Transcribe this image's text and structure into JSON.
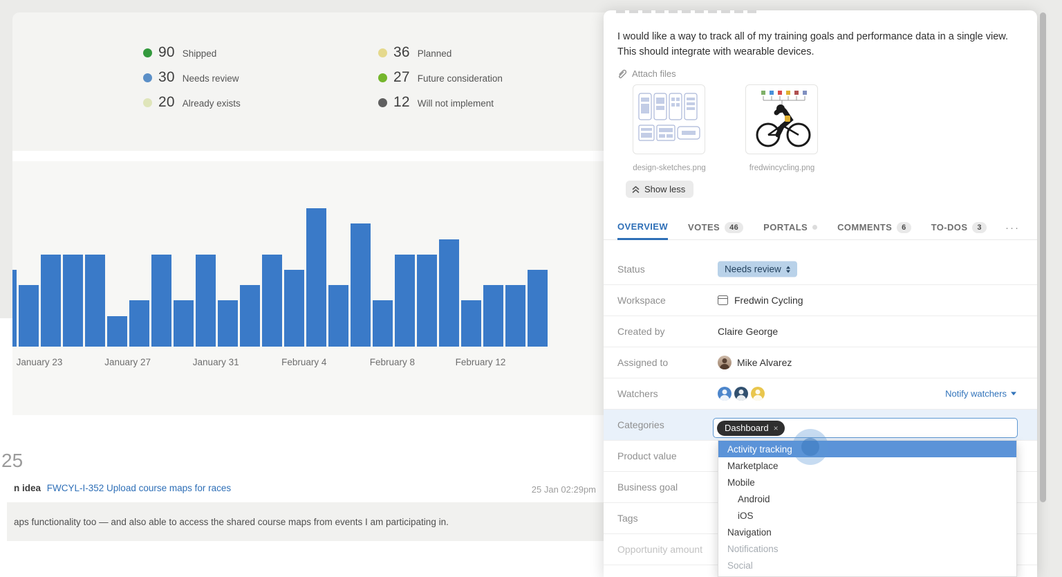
{
  "colors": {
    "accent_blue": "#2e6fb7",
    "bar_blue": "#3a7ac8",
    "status_badge_bg": "#b9d2e9",
    "dropdown_highlight": "#5b93d8"
  },
  "legend": {
    "items": [
      {
        "value": "90",
        "label": "Shipped",
        "color": "#33993d"
      },
      {
        "value": "30",
        "label": "Needs review",
        "color": "#5b8fc7"
      },
      {
        "value": "20",
        "label": "Already exists",
        "color": "#dfe5ba"
      },
      {
        "value": "36",
        "label": "Planned",
        "color": "#e5d98d"
      },
      {
        "value": "27",
        "label": "Future consideration",
        "color": "#74b62c"
      },
      {
        "value": "12",
        "label": "Will not implement",
        "color": "#5f5f5f"
      }
    ]
  },
  "chart_data": {
    "type": "bar",
    "title": "",
    "xlabel": "",
    "ylabel": "",
    "x": [
      1,
      2,
      3,
      4,
      5,
      6,
      7,
      8,
      9,
      10,
      11,
      12,
      13,
      14,
      15,
      16,
      17,
      18,
      19,
      20,
      21,
      22,
      23,
      24,
      25
    ],
    "values": [
      5,
      4,
      6,
      6,
      6,
      2,
      3,
      6,
      3,
      6,
      3,
      4,
      6,
      5,
      9,
      4,
      8,
      3,
      6,
      6,
      7,
      3,
      4,
      4,
      5
    ],
    "x_tick_labels": [
      "January 23",
      "January 27",
      "January 31",
      "February 4",
      "February 8",
      "February 12"
    ],
    "bar_color": "#3a7ac8",
    "grid": false,
    "legend_position": "none",
    "note": "daily bars, one per day; y-axis unlabeled, values estimated from bar heights"
  },
  "feed": {
    "count": "25",
    "prefix": "n idea",
    "link": "FWCYL-I-352 Upload course maps for races",
    "timestamp": "25 Jan 02:29pm",
    "quote": "aps functionality too — and also able to access the shared course maps from events I am participating in."
  },
  "panel": {
    "description": "I would like a way to track all of my training goals and performance data in a single view. This should integrate with wearable devices.",
    "attach_files_label": "Attach files",
    "attachments": [
      {
        "name": "design-sketches.png",
        "kind": "wireframes"
      },
      {
        "name": "fredwincycling.png",
        "kind": "cyclist"
      }
    ],
    "show_less_label": "Show less",
    "tabs": [
      {
        "label": "OVERVIEW",
        "active": true
      },
      {
        "label": "VOTES",
        "badge": "46"
      },
      {
        "label": "PORTALS",
        "badge": "dot"
      },
      {
        "label": "COMMENTS",
        "badge": "6"
      },
      {
        "label": "TO-DOS",
        "badge": "3"
      }
    ],
    "tabs_more": "···",
    "fields": [
      {
        "key": "status",
        "label": "Status",
        "type": "status",
        "value": "Needs review"
      },
      {
        "key": "workspace",
        "label": "Workspace",
        "type": "workspace",
        "value": "Fredwin Cycling"
      },
      {
        "key": "created-by",
        "label": "Created by",
        "type": "text",
        "value": "Claire George"
      },
      {
        "key": "assigned-to",
        "label": "Assigned to",
        "type": "avatar_text",
        "value": "Mike Alvarez"
      },
      {
        "key": "watchers",
        "label": "Watchers",
        "type": "watchers"
      },
      {
        "key": "categories",
        "label": "Categories",
        "type": "categories"
      },
      {
        "key": "product-value",
        "label": "Product value",
        "type": "empty"
      },
      {
        "key": "business-goal",
        "label": "Business goal",
        "type": "empty"
      },
      {
        "key": "tags",
        "label": "Tags",
        "type": "empty"
      },
      {
        "key": "opportunity-amount",
        "label": "Opportunity amount",
        "type": "empty",
        "faded": true
      }
    ],
    "watcher_avatar_colors": [
      "#4d86cb",
      "#31506f",
      "#e9c64d"
    ],
    "notify_watchers_label": "Notify watchers",
    "categories": {
      "selected": "Dashboard",
      "remove_glyph": "×"
    },
    "dropdown": {
      "items": [
        {
          "label": "Activity tracking",
          "highlighted": true
        },
        {
          "label": "Marketplace"
        },
        {
          "label": "Mobile"
        },
        {
          "label": "Android",
          "indent": true
        },
        {
          "label": "iOS",
          "indent": true
        },
        {
          "label": "Navigation"
        },
        {
          "label": "Notifications",
          "muted": true
        },
        {
          "label": "Social",
          "muted": true
        }
      ]
    }
  }
}
